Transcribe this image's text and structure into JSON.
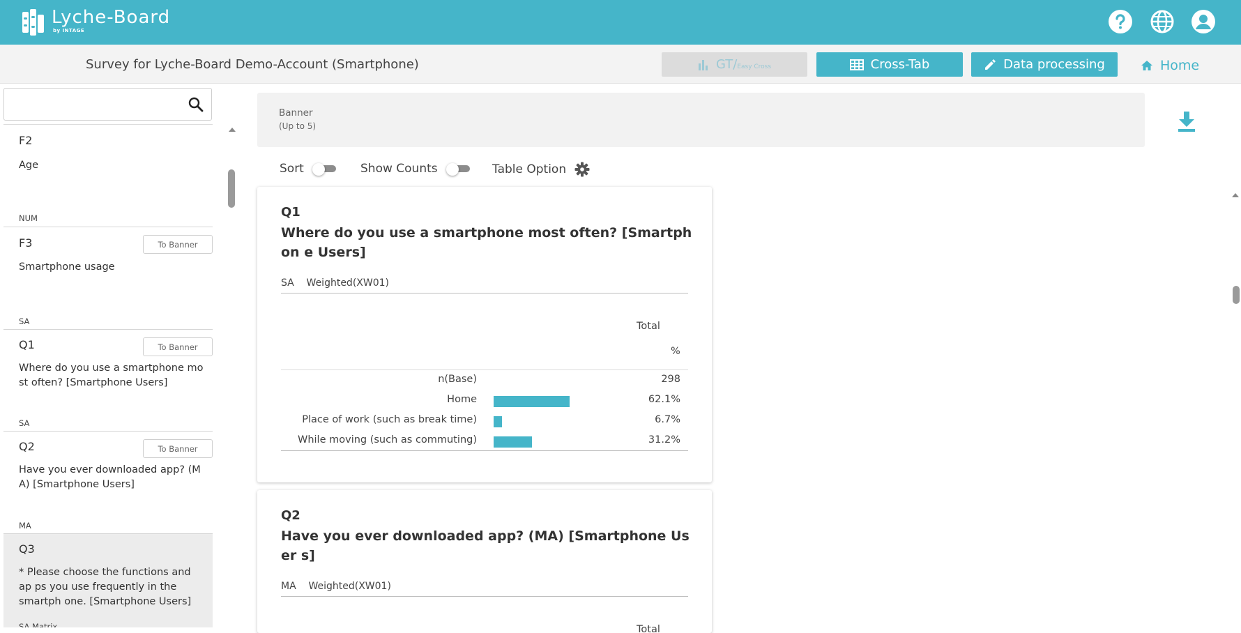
{
  "app": {
    "logo_text": "Lyche-Board",
    "logo_sub": "by INTAGE",
    "header_icons": [
      "help-icon",
      "globe-icon",
      "account-icon"
    ]
  },
  "subheader": {
    "survey_title": "Survey for Lyche-Board Demo-Account (Smartphone)",
    "gt_label": "GT/",
    "gt_small": "Easy Cross",
    "crosstab_label": "Cross-Tab",
    "data_processing_label": "Data processing",
    "home_label": "Home"
  },
  "sidebar": {
    "search_placeholder": "",
    "tobanner_label": "To Banner",
    "items": [
      {
        "code": "F2",
        "label": "Age",
        "type_after": "NUM"
      },
      {
        "code": "F3",
        "label": "Smartphone usage",
        "type_after": "SA"
      },
      {
        "code": "Q1",
        "label": "Where do you use a smartphone mo st often? [Smartphone Users]",
        "type_after": "SA"
      },
      {
        "code": "Q2",
        "label": "Have you ever downloaded app? (M A) [Smartphone Users]",
        "type_after": "MA"
      },
      {
        "code": "Q3",
        "label": "* Please choose the functions and ap ps you use frequently in the smartph one. [Smartphone Users]",
        "type_after": "SA Matrix"
      }
    ]
  },
  "banner": {
    "title": "Banner",
    "subtitle": "(Up to 5)"
  },
  "options": {
    "sort_label": "Sort",
    "show_counts_label": "Show Counts",
    "table_option_label": "Table Option"
  },
  "cards": [
    {
      "code": "Q1",
      "title": "Where do you use a smartphone most often? [Smartphon e Users]",
      "meta_type": "SA",
      "meta_weight": "Weighted(XW01)",
      "col_header": "Total",
      "unit_header": "%",
      "base_label": "n(Base)",
      "base_value": "298",
      "rows": [
        {
          "label": "Home",
          "value": "62.1%",
          "pct": 62.1
        },
        {
          "label": "Place of work (such as break time)",
          "value": "6.7%",
          "pct": 6.7
        },
        {
          "label": "While moving (such as commuting)",
          "value": "31.2%",
          "pct": 31.2
        }
      ]
    },
    {
      "code": "Q2",
      "title": "Have you ever downloaded app? (MA) [Smartphone User s]",
      "meta_type": "MA",
      "meta_weight": "Weighted(XW01)",
      "col_header": "Total"
    }
  ],
  "colors": {
    "accent": "#45b5c9",
    "subheader_bg": "#f3f3f3",
    "disabled_bg": "#dcdcdc"
  }
}
